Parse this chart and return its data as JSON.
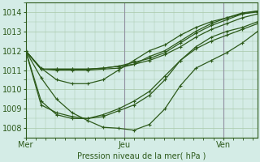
{
  "background_color": "#d4ece6",
  "plot_bg_color": "#d4ece6",
  "line_color": "#2d5a1b",
  "grid_color": "#a8c8a8",
  "vline_color": "#9090a0",
  "xlabel": "Pression niveau de la mer( hPa )",
  "xlabel_color": "#2d5a1b",
  "tick_color": "#2d5a1b",
  "ylim": [
    1007.5,
    1014.5
  ],
  "yticks": [
    1008,
    1009,
    1010,
    1011,
    1012,
    1013,
    1014
  ],
  "xtick_labels": [
    "Mer",
    "Jeu",
    "Ven"
  ],
  "xtick_positions": [
    0.0,
    1.0,
    2.0
  ],
  "vlines": [
    1.0,
    2.0
  ],
  "series": [
    [
      1012.0,
      1011.05,
      1011.05,
      1011.05,
      1011.05,
      1011.1,
      1011.2,
      1011.3,
      1011.5,
      1011.8,
      1012.2,
      1012.7,
      1013.1,
      1013.4,
      1013.7,
      1013.9
    ],
    [
      1012.0,
      1011.05,
      1011.05,
      1011.05,
      1011.05,
      1011.1,
      1011.2,
      1011.4,
      1011.6,
      1011.9,
      1012.4,
      1012.9,
      1013.3,
      1013.6,
      1013.9,
      1014.0
    ],
    [
      1012.0,
      1011.05,
      1011.0,
      1011.0,
      1011.0,
      1011.05,
      1011.1,
      1011.3,
      1011.7,
      1012.0,
      1012.5,
      1013.0,
      1013.4,
      1013.7,
      1013.95,
      1014.05
    ],
    [
      1012.0,
      1011.1,
      1010.5,
      1010.3,
      1010.3,
      1010.5,
      1011.0,
      1011.5,
      1012.0,
      1012.3,
      1012.8,
      1013.2,
      1013.5,
      1013.7,
      1013.9,
      1014.05
    ],
    [
      1012.0,
      1010.6,
      1009.5,
      1008.8,
      1008.4,
      1008.05,
      1008.0,
      1007.9,
      1008.2,
      1009.0,
      1010.2,
      1011.1,
      1011.5,
      1011.9,
      1012.4,
      1013.0
    ],
    [
      1012.0,
      1009.4,
      1008.7,
      1008.5,
      1008.5,
      1008.6,
      1008.9,
      1009.2,
      1009.7,
      1010.5,
      1011.5,
      1012.2,
      1012.7,
      1013.0,
      1013.2,
      1013.5
    ],
    [
      1012.0,
      1009.2,
      1008.8,
      1008.6,
      1008.5,
      1008.7,
      1009.0,
      1009.4,
      1009.9,
      1010.7,
      1011.5,
      1012.1,
      1012.5,
      1012.8,
      1013.1,
      1013.4
    ]
  ],
  "marker": "+",
  "marker_size": 3.5,
  "line_width": 0.9,
  "xlim": [
    0.0,
    2.35
  ],
  "n_points": 16,
  "x_start": 0.0,
  "x_end": 2.35
}
